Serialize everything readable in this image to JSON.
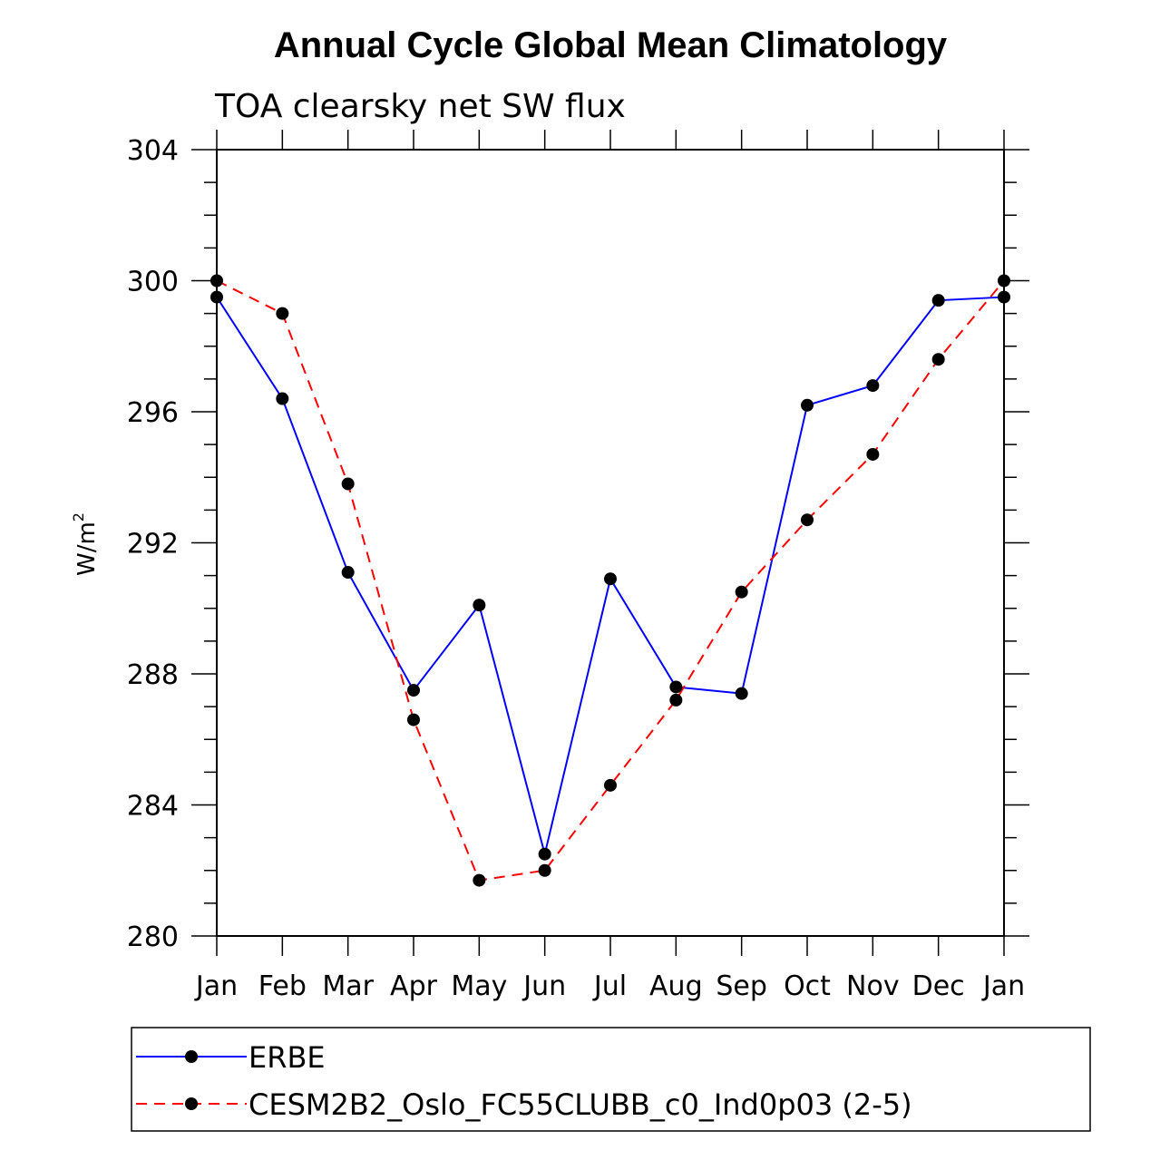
{
  "chart_data": {
    "type": "line",
    "title": "Annual Cycle Global Mean Climatology",
    "subtitle": "TOA clearsky net SW flux",
    "ylabel": "W/m",
    "ylabel_sup": "2",
    "xlabel": "",
    "categories": [
      "Jan",
      "Feb",
      "Mar",
      "Apr",
      "May",
      "Jun",
      "Jul",
      "Aug",
      "Sep",
      "Oct",
      "Nov",
      "Dec",
      "Jan"
    ],
    "ylim": [
      280,
      304
    ],
    "yticks": [
      280,
      284,
      288,
      292,
      296,
      300,
      304
    ],
    "series": [
      {
        "name": "ERBE",
        "color": "#0000ff",
        "dash": "solid",
        "values": [
          299.5,
          296.4,
          291.1,
          287.5,
          290.1,
          282.5,
          290.9,
          287.6,
          287.4,
          296.2,
          296.8,
          299.4,
          299.5
        ]
      },
      {
        "name": "CESM2B2_Oslo_FC55CLUBB_c0_Ind0p03 (2-5)",
        "color": "#ff0000",
        "dash": "dashed",
        "values": [
          300.0,
          299.0,
          293.8,
          286.6,
          281.7,
          282.0,
          284.6,
          287.2,
          290.5,
          292.7,
          294.7,
          297.6,
          300.0
        ]
      }
    ]
  }
}
